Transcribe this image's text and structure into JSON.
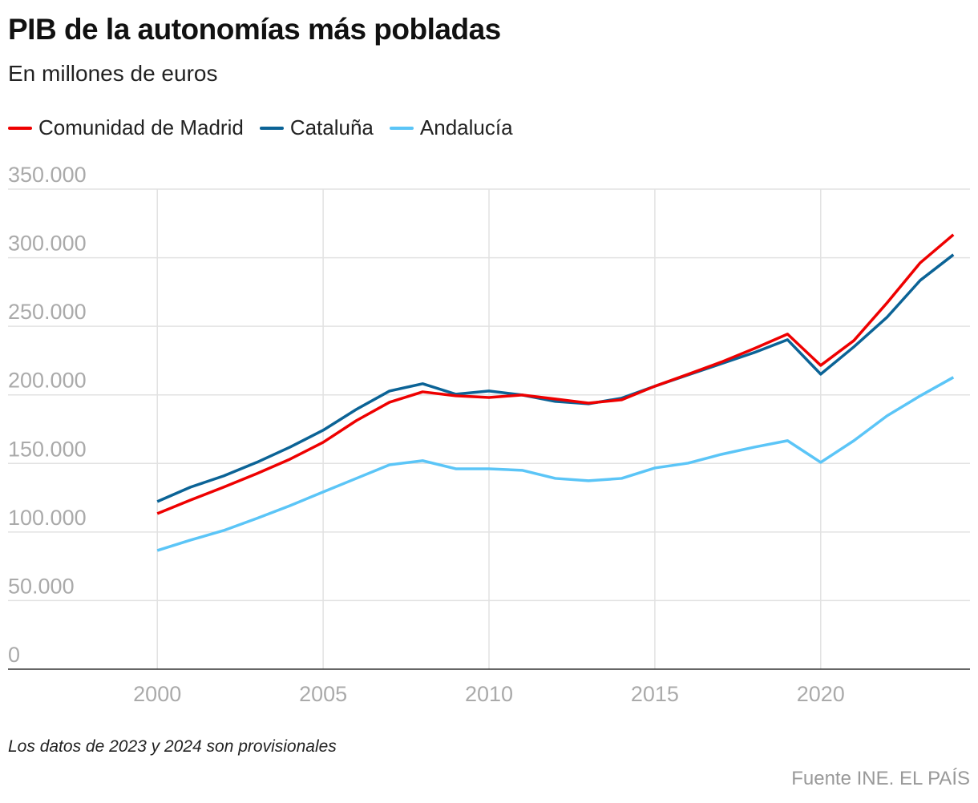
{
  "chart_data": {
    "type": "line",
    "title": "PIB de la autonomías más pobladas",
    "subtitle": "En millones de euros",
    "xlabel": "",
    "ylabel": "",
    "xlim": [
      1995.5,
      2024.5
    ],
    "ylim": [
      0,
      350000
    ],
    "grid": true,
    "legend_position": "top-left",
    "x_ticks": [
      2000,
      2005,
      2010,
      2015,
      2020
    ],
    "x_tick_labels": [
      "2000",
      "2005",
      "2010",
      "2015",
      "2020"
    ],
    "y_ticks": [
      0,
      50000,
      100000,
      150000,
      200000,
      250000,
      300000,
      350000
    ],
    "y_tick_labels": [
      "0",
      "50.000",
      "100.000",
      "150.000",
      "200.000",
      "250.000",
      "300.000",
      "350.000"
    ],
    "x": [
      2000,
      2001,
      2002,
      2003,
      2004,
      2005,
      2006,
      2007,
      2008,
      2009,
      2010,
      2011,
      2012,
      2013,
      2014,
      2015,
      2016,
      2017,
      2018,
      2019,
      2020,
      2021,
      2022,
      2023,
      2024
    ],
    "series": [
      {
        "name": "Comunidad de Madrid",
        "color": "#ee0000",
        "values": [
          113400,
          123300,
          132700,
          142600,
          153100,
          165400,
          181200,
          194600,
          202200,
          199300,
          198100,
          199900,
          197000,
          194000,
          196400,
          206300,
          215000,
          223900,
          233800,
          244300,
          221500,
          239600,
          267100,
          296300,
          316800
        ]
      },
      {
        "name": "Cataluña",
        "color": "#0b6396",
        "values": [
          122200,
          132700,
          140900,
          150800,
          161900,
          174200,
          189400,
          202800,
          208100,
          200500,
          202800,
          199900,
          195200,
          193500,
          197600,
          206300,
          214500,
          222700,
          230900,
          240200,
          215100,
          235000,
          256600,
          283500,
          302200
        ]
      },
      {
        "name": "Andalucía",
        "color": "#5bc5f7",
        "values": [
          86500,
          94100,
          101100,
          109900,
          119200,
          129200,
          139100,
          149000,
          152000,
          146100,
          146100,
          145000,
          139100,
          137400,
          139100,
          146700,
          150200,
          156600,
          161900,
          166600,
          150800,
          166600,
          184700,
          199300,
          212800
        ]
      }
    ],
    "note": "Los datos de 2023 y 2024 son provisionales",
    "source": "Fuente INE. EL PAÍS"
  }
}
